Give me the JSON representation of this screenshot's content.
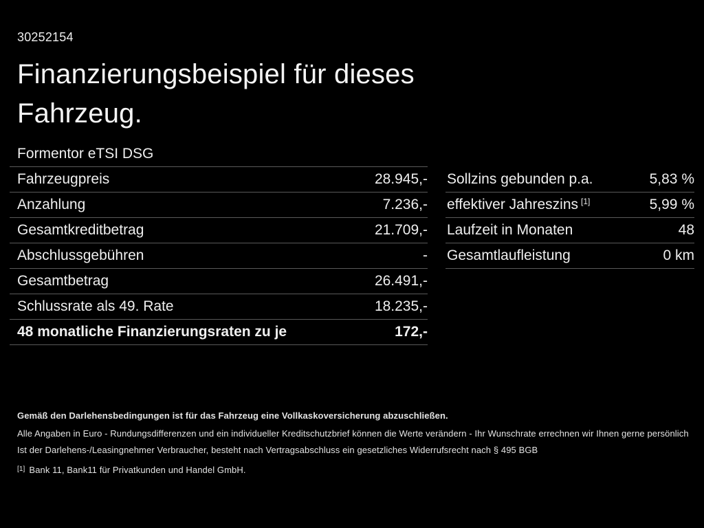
{
  "page": {
    "background_color": "#000000",
    "text_color": "#f0f0f0",
    "divider_color": "#5a5a5a"
  },
  "header": {
    "reference_number": "30252154",
    "title_line1": "Finanzierungsbeispiel für dieses",
    "title_line2": "Fahrzeug.",
    "model_name": "Formentor eTSI DSG"
  },
  "financing_table": {
    "rows": [
      {
        "label": "Fahrzeugpreis",
        "value": "28.945,-"
      },
      {
        "label": "Anzahlung",
        "value": "7.236,-"
      },
      {
        "label": "Gesamtkreditbetrag",
        "value": "21.709,-"
      },
      {
        "label": "Abschlussgebühren",
        "value": "-"
      },
      {
        "label": "Gesamtbetrag",
        "value": "26.491,-"
      },
      {
        "label": "Schlussrate als 49. Rate",
        "value": "18.235,-"
      },
      {
        "label": "48 monatliche Finanzierungsraten zu je",
        "value": "172,-"
      }
    ]
  },
  "conditions_table": {
    "rows": [
      {
        "label": "Sollzins gebunden p.a.",
        "value": "5,83 %"
      },
      {
        "label": "effektiver Jahreszins",
        "sup": "[1]",
        "value": "5,99 %"
      },
      {
        "label": "Laufzeit in Monaten",
        "value": "48"
      },
      {
        "label": "Gesamtlaufleistung",
        "value": "0 km"
      }
    ]
  },
  "footnotes": {
    "insurance_note": "Gemäß den Darlehensbedingungen ist für das Fahrzeug eine Vollkaskoversicherung abzuschließen.",
    "disclaimer_line1": "Alle Angaben in Euro - Rundungsdifferenzen und ein individueller Kreditschutzbrief können die Werte verändern - Ihr Wunschrate errechnen wir Ihnen gerne persönlich",
    "disclaimer_line2": "Ist der Darlehens-/Leasingnehmer Verbraucher, besteht nach Vertragsabschluss ein gesetzliches Widerrufsrecht nach § 495 BGB",
    "bank_note_marker": "[1]",
    "bank_note": "Bank 11, Bank11 für Privatkunden und Handel GmbH."
  }
}
